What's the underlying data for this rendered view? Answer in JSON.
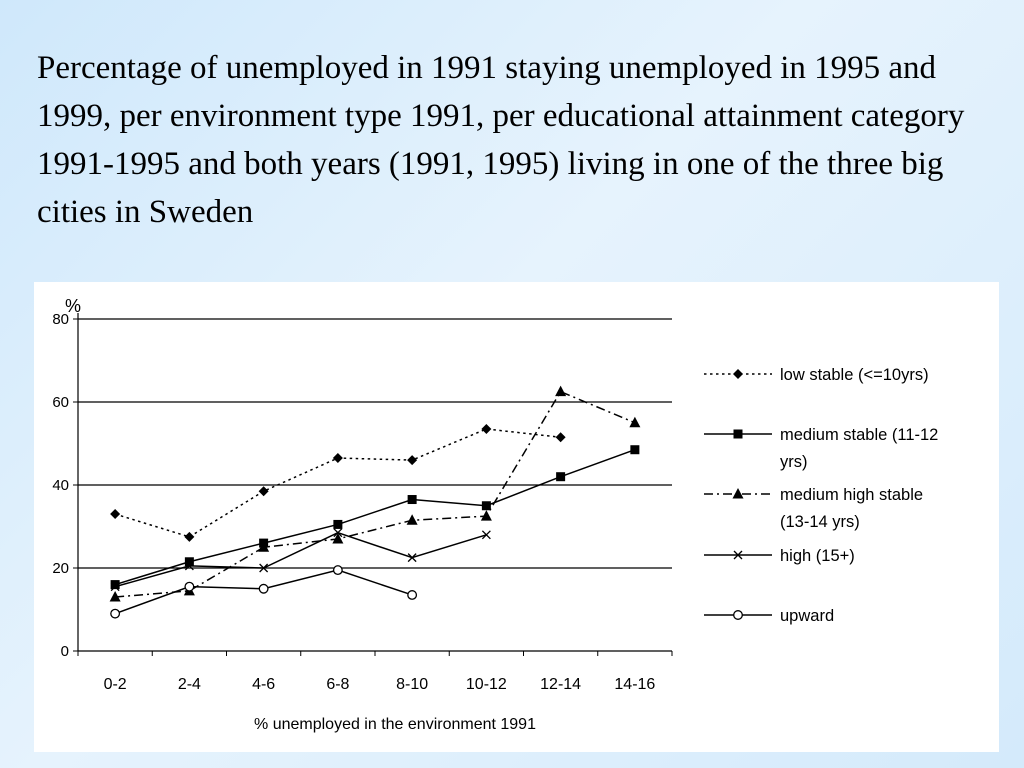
{
  "slide": {
    "title": "Percentage of unemployed in 1991 staying unemployed in 1995 and 1999, per environment type 1991, per educational attainment category 1991-1995 and both years (1991, 1995) living in one of the three big cities in Sweden"
  },
  "chart_data": {
    "type": "line",
    "title": "",
    "xlabel": "% unemployed in the environment 1991",
    "ylabel": "%",
    "ylim": [
      0,
      80
    ],
    "yticks": [
      0,
      20,
      40,
      60,
      80
    ],
    "grid": true,
    "legend_position": "right",
    "categories": [
      "0-2",
      "2-4",
      "4-6",
      "6-8",
      "8-10",
      "10-12",
      "12-14",
      "14-16"
    ],
    "series": [
      {
        "name": "low stable (<=10yrs)",
        "legend_label": [
          "low stable (<=10yrs)"
        ],
        "marker": "diamond",
        "dash": "dotted",
        "values": [
          33,
          27.5,
          38.5,
          46.5,
          46,
          53.5,
          51.5,
          null
        ]
      },
      {
        "name": "medium stable (11-12 yrs)",
        "legend_label": [
          "medium stable (11-12",
          "yrs)"
        ],
        "marker": "square",
        "dash": "solid",
        "values": [
          16,
          21.5,
          26,
          30.5,
          36.5,
          35,
          42,
          48.5
        ]
      },
      {
        "name": "medium high stable (13-14 yrs)",
        "legend_label": [
          "medium high stable",
          "(13-14 yrs)"
        ],
        "marker": "triangle",
        "dash": "dashdot",
        "values": [
          13,
          14.5,
          25,
          27,
          31.5,
          32.5,
          62.5,
          55
        ]
      },
      {
        "name": "high (15+)",
        "legend_label": [
          "high (15+)"
        ],
        "marker": "x",
        "dash": "solid",
        "values": [
          15.5,
          20.5,
          20,
          28.5,
          22.5,
          28,
          null,
          null
        ]
      },
      {
        "name": "upward",
        "legend_label": [
          "upward"
        ],
        "marker": "circle",
        "dash": "solid",
        "values": [
          9,
          15.5,
          15,
          19.5,
          13.5,
          null,
          null,
          null
        ]
      }
    ]
  }
}
